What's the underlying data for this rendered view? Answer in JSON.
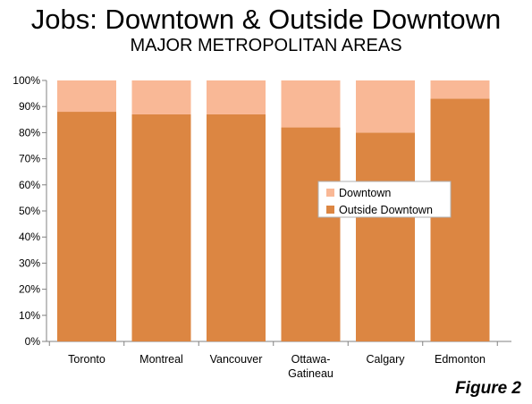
{
  "chart_data": {
    "type": "bar",
    "stacked": true,
    "percent_axis": true,
    "title": "Jobs: Downtown & Outside Downtown",
    "subtitle": "MAJOR METROPOLITAN AREAS",
    "categories": [
      [
        "Toronto"
      ],
      [
        "Montreal"
      ],
      [
        "Vancouver"
      ],
      [
        "Ottawa-",
        "Gatineau"
      ],
      [
        "Calgary"
      ],
      [
        "Edmonton"
      ]
    ],
    "series": [
      {
        "name": "Outside Downtown",
        "color": "#dc8642",
        "values": [
          88,
          87,
          87,
          82,
          80,
          93
        ]
      },
      {
        "name": "Downtown",
        "color": "#f9b896",
        "values": [
          12,
          13,
          13,
          18,
          20,
          7
        ]
      }
    ],
    "legend_order": [
      "Downtown",
      "Outside Downtown"
    ],
    "yticks": [
      "0%",
      "10%",
      "20%",
      "30%",
      "40%",
      "50%",
      "60%",
      "70%",
      "80%",
      "90%",
      "100%"
    ],
    "ylim": [
      0,
      100
    ],
    "legend_position": "right-center",
    "grid": false
  },
  "figure_label": "Figure 2"
}
